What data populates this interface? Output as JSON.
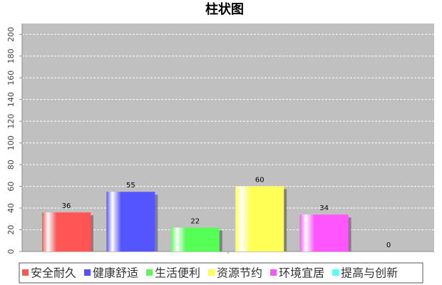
{
  "chart_data": {
    "type": "bar",
    "title": "柱状图",
    "categories": [
      null
    ],
    "series": [
      {
        "name": "安全耐久",
        "color": "#ff5555",
        "values": [
          36
        ]
      },
      {
        "name": "健康舒适",
        "color": "#5555ff",
        "values": [
          55
        ]
      },
      {
        "name": "生活便利",
        "color": "#55ff55",
        "values": [
          22
        ]
      },
      {
        "name": "资源节约",
        "color": "#ffff55",
        "values": [
          60
        ]
      },
      {
        "name": "环境宜居",
        "color": "#ff55ff",
        "values": [
          34
        ]
      },
      {
        "name": "提高与创新",
        "color": "#55ffff",
        "values": [
          0
        ]
      }
    ],
    "ylim": [
      0,
      210
    ],
    "yticks": [
      0,
      20,
      40,
      60,
      80,
      100,
      120,
      140,
      160,
      180,
      200
    ],
    "grid": true
  }
}
